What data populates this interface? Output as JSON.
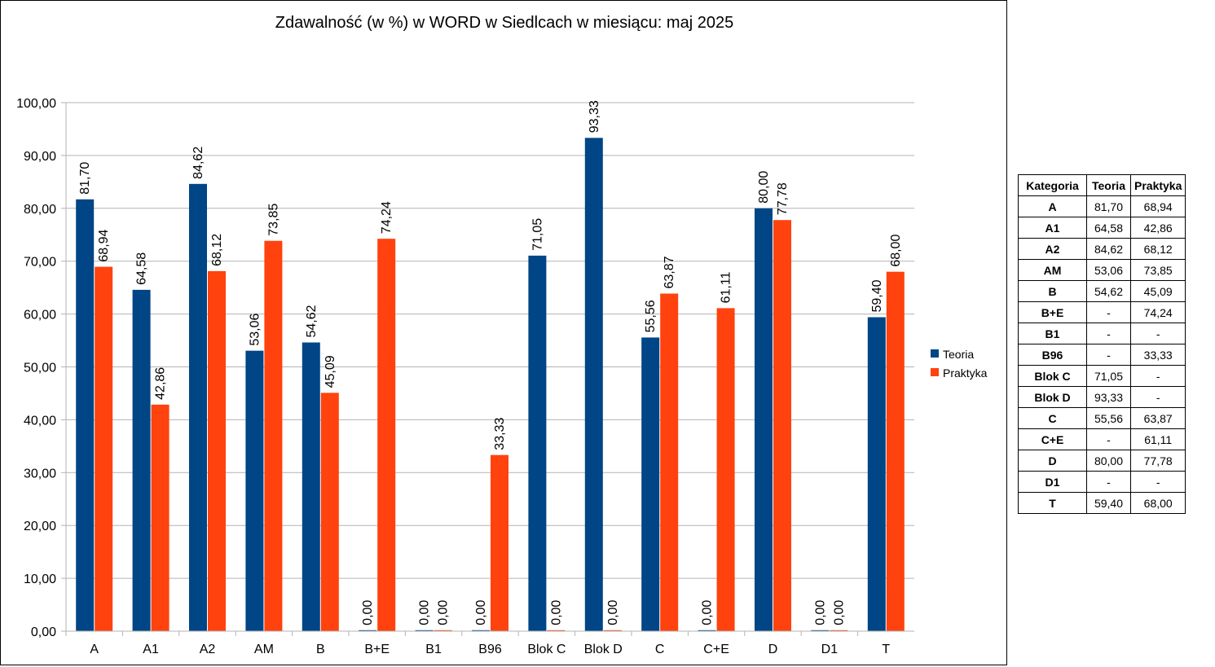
{
  "chart_data": {
    "type": "bar",
    "title": "Zdawalność (w %) w WORD w Siedlcach w miesiącu: maj 2025",
    "categories": [
      "A",
      "A1",
      "A2",
      "AM",
      "B",
      "B+E",
      "B1",
      "B96",
      "Blok C",
      "Blok D",
      "C",
      "C+E",
      "D",
      "D1",
      "T"
    ],
    "ylim": [
      0,
      100
    ],
    "yticks": [
      "0,00",
      "10,00",
      "20,00",
      "30,00",
      "40,00",
      "50,00",
      "60,00",
      "70,00",
      "80,00",
      "90,00",
      "100,00"
    ],
    "grid": true,
    "legend_position": "right",
    "series": [
      {
        "name": "Teoria",
        "color": "#004586",
        "values": [
          81.7,
          64.58,
          84.62,
          53.06,
          54.62,
          0,
          0,
          0,
          71.05,
          93.33,
          55.56,
          0,
          80.0,
          0,
          59.4
        ],
        "labels": [
          "81,70",
          "64,58",
          "84,62",
          "53,06",
          "54,62",
          "0,00",
          "0,00",
          "0,00",
          "71,05",
          "93,33",
          "55,56",
          "0,00",
          "80,00",
          "0,00",
          "59,40"
        ]
      },
      {
        "name": "Praktyka",
        "color": "#ff420e",
        "values": [
          68.94,
          42.86,
          68.12,
          73.85,
          45.09,
          74.24,
          0,
          33.33,
          0,
          0,
          63.87,
          61.11,
          77.78,
          0,
          68.0
        ],
        "labels": [
          "68,94",
          "42,86",
          "68,12",
          "73,85",
          "45,09",
          "74,24",
          "0,00",
          "33,33",
          "0,00",
          "0,00",
          "63,87",
          "61,11",
          "77,78",
          "0,00",
          "68,00"
        ]
      }
    ]
  },
  "table": {
    "headers": [
      "Kategoria",
      "Teoria",
      "Praktyka"
    ],
    "rows": [
      [
        "A",
        "81,70",
        "68,94"
      ],
      [
        "A1",
        "64,58",
        "42,86"
      ],
      [
        "A2",
        "84,62",
        "68,12"
      ],
      [
        "AM",
        "53,06",
        "73,85"
      ],
      [
        "B",
        "54,62",
        "45,09"
      ],
      [
        "B+E",
        "-",
        "74,24"
      ],
      [
        "B1",
        "-",
        "-"
      ],
      [
        "B96",
        "-",
        "33,33"
      ],
      [
        "Blok C",
        "71,05",
        "-"
      ],
      [
        "Blok D",
        "93,33",
        "-"
      ],
      [
        "C",
        "55,56",
        "63,87"
      ],
      [
        "C+E",
        "-",
        "61,11"
      ],
      [
        "D",
        "80,00",
        "77,78"
      ],
      [
        "D1",
        "-",
        "-"
      ],
      [
        "T",
        "59,40",
        "68,00"
      ]
    ]
  }
}
